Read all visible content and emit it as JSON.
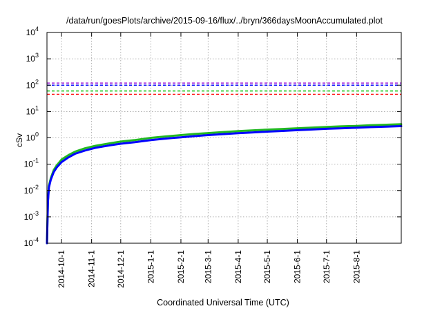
{
  "chart_data": {
    "type": "line",
    "title": "/data/run/goesPlots/archive/2015-09-16/flux/../bryn/366daysMoonAccumulated.plot",
    "xlabel": "Coordinated Universal Time (UTC)",
    "ylabel": "cSv",
    "yscale": "log",
    "ylim": [
      0.0001,
      10000
    ],
    "xlim": [
      "2014-09-16",
      "2015-09-16"
    ],
    "grid": true,
    "yticks": [
      {
        "value": 0.0001,
        "base": "10",
        "exp": "-4"
      },
      {
        "value": 0.001,
        "base": "10",
        "exp": "-3"
      },
      {
        "value": 0.01,
        "base": "10",
        "exp": "-2"
      },
      {
        "value": 0.1,
        "base": "10",
        "exp": "-1"
      },
      {
        "value": 1,
        "base": "10",
        "exp": "0"
      },
      {
        "value": 10,
        "base": "10",
        "exp": "1"
      },
      {
        "value": 100,
        "base": "10",
        "exp": "2"
      },
      {
        "value": 1000,
        "base": "10",
        "exp": "3"
      },
      {
        "value": 10000,
        "base": "10",
        "exp": "4"
      }
    ],
    "xticks": [
      {
        "date": "2014-10-01",
        "label": "2014-10-1"
      },
      {
        "date": "2014-11-01",
        "label": "2014-11-1"
      },
      {
        "date": "2014-12-01",
        "label": "2014-12-1"
      },
      {
        "date": "2015-01-01",
        "label": "2015-1-1"
      },
      {
        "date": "2015-02-01",
        "label": "2015-2-1"
      },
      {
        "date": "2015-03-01",
        "label": "2015-3-1"
      },
      {
        "date": "2015-04-01",
        "label": "2015-4-1"
      },
      {
        "date": "2015-05-01",
        "label": "2015-5-1"
      },
      {
        "date": "2015-06-01",
        "label": "2015-6-1"
      },
      {
        "date": "2015-07-01",
        "label": "2015-7-1"
      },
      {
        "date": "2015-08-01",
        "label": "2015-8-1"
      }
    ],
    "thresholds": [
      {
        "value": 120,
        "color": "#9400d3"
      },
      {
        "value": 100,
        "color": "#0000ff"
      },
      {
        "value": 60,
        "color": "#00c000"
      },
      {
        "value": 45,
        "color": "#ff0000"
      }
    ],
    "series": [
      {
        "color": "#22b822",
        "points": [
          [
            "2014-09-16",
            0.0001
          ],
          [
            "2014-09-17",
            0.004
          ],
          [
            "2014-09-18",
            0.015
          ],
          [
            "2014-09-20",
            0.03
          ],
          [
            "2014-09-23",
            0.06
          ],
          [
            "2014-09-26",
            0.09
          ],
          [
            "2014-10-01",
            0.15
          ],
          [
            "2014-10-08",
            0.22
          ],
          [
            "2014-10-15",
            0.3
          ],
          [
            "2014-10-25",
            0.4
          ],
          [
            "2014-11-05",
            0.5
          ],
          [
            "2014-11-20",
            0.62
          ],
          [
            "2014-12-01",
            0.72
          ],
          [
            "2014-12-15",
            0.82
          ],
          [
            "2015-01-01",
            1.0
          ],
          [
            "2015-01-15",
            1.12
          ],
          [
            "2015-02-01",
            1.27
          ],
          [
            "2015-02-15",
            1.4
          ],
          [
            "2015-03-01",
            1.52
          ],
          [
            "2015-03-15",
            1.64
          ],
          [
            "2015-04-01",
            1.8
          ],
          [
            "2015-04-15",
            1.92
          ],
          [
            "2015-05-01",
            2.05
          ],
          [
            "2015-05-15",
            2.17
          ],
          [
            "2015-06-01",
            2.32
          ],
          [
            "2015-06-15",
            2.45
          ],
          [
            "2015-07-01",
            2.6
          ],
          [
            "2015-07-15",
            2.72
          ],
          [
            "2015-08-01",
            2.85
          ],
          [
            "2015-08-15",
            3.0
          ],
          [
            "2015-09-01",
            3.15
          ],
          [
            "2015-09-16",
            3.3
          ]
        ]
      },
      {
        "color": "#0000ff",
        "points": [
          [
            "2014-09-16",
            0.0001
          ],
          [
            "2014-09-17",
            0.0035
          ],
          [
            "2014-09-18",
            0.013
          ],
          [
            "2014-09-20",
            0.026
          ],
          [
            "2014-09-23",
            0.05
          ],
          [
            "2014-09-26",
            0.075
          ],
          [
            "2014-10-01",
            0.12
          ],
          [
            "2014-10-08",
            0.18
          ],
          [
            "2014-10-15",
            0.25
          ],
          [
            "2014-10-25",
            0.33
          ],
          [
            "2014-11-05",
            0.42
          ],
          [
            "2014-11-20",
            0.52
          ],
          [
            "2014-12-01",
            0.6
          ],
          [
            "2014-12-15",
            0.68
          ],
          [
            "2015-01-01",
            0.82
          ],
          [
            "2015-01-15",
            0.93
          ],
          [
            "2015-02-01",
            1.05
          ],
          [
            "2015-02-15",
            1.16
          ],
          [
            "2015-03-01",
            1.27
          ],
          [
            "2015-03-15",
            1.38
          ],
          [
            "2015-04-01",
            1.5
          ],
          [
            "2015-04-15",
            1.6
          ],
          [
            "2015-05-01",
            1.72
          ],
          [
            "2015-05-15",
            1.82
          ],
          [
            "2015-06-01",
            1.95
          ],
          [
            "2015-06-15",
            2.06
          ],
          [
            "2015-07-01",
            2.2
          ],
          [
            "2015-07-15",
            2.3
          ],
          [
            "2015-08-01",
            2.42
          ],
          [
            "2015-08-15",
            2.55
          ],
          [
            "2015-09-01",
            2.68
          ],
          [
            "2015-09-16",
            2.8
          ]
        ]
      }
    ]
  }
}
